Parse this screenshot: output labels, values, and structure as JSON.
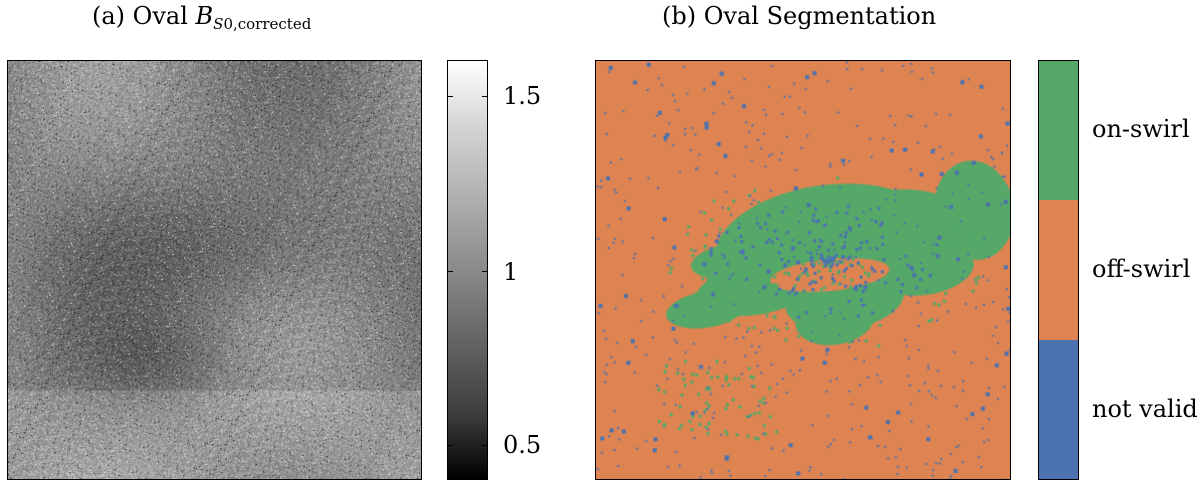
{
  "panel_a": {
    "title_prefix": "(a) Oval ",
    "title_symbol": "B",
    "title_sub_var": "S",
    "title_sub_rest": "0,corrected",
    "image_description": "grayscale B_S0,corrected magnetic field map",
    "colorbar": {
      "colormap": "grayscale",
      "ticks": [
        "1.5",
        "1",
        "0.5"
      ],
      "range": [
        0.4,
        1.6
      ]
    }
  },
  "panel_b": {
    "title": "(b) Oval Segmentation",
    "image_description": "three-class segmentation map",
    "categories": [
      {
        "label": "on-swirl",
        "color": "#55a868"
      },
      {
        "label": "off-swirl",
        "color": "#dd8452"
      },
      {
        "label": "not valid",
        "color": "#4c72b0"
      }
    ]
  }
}
